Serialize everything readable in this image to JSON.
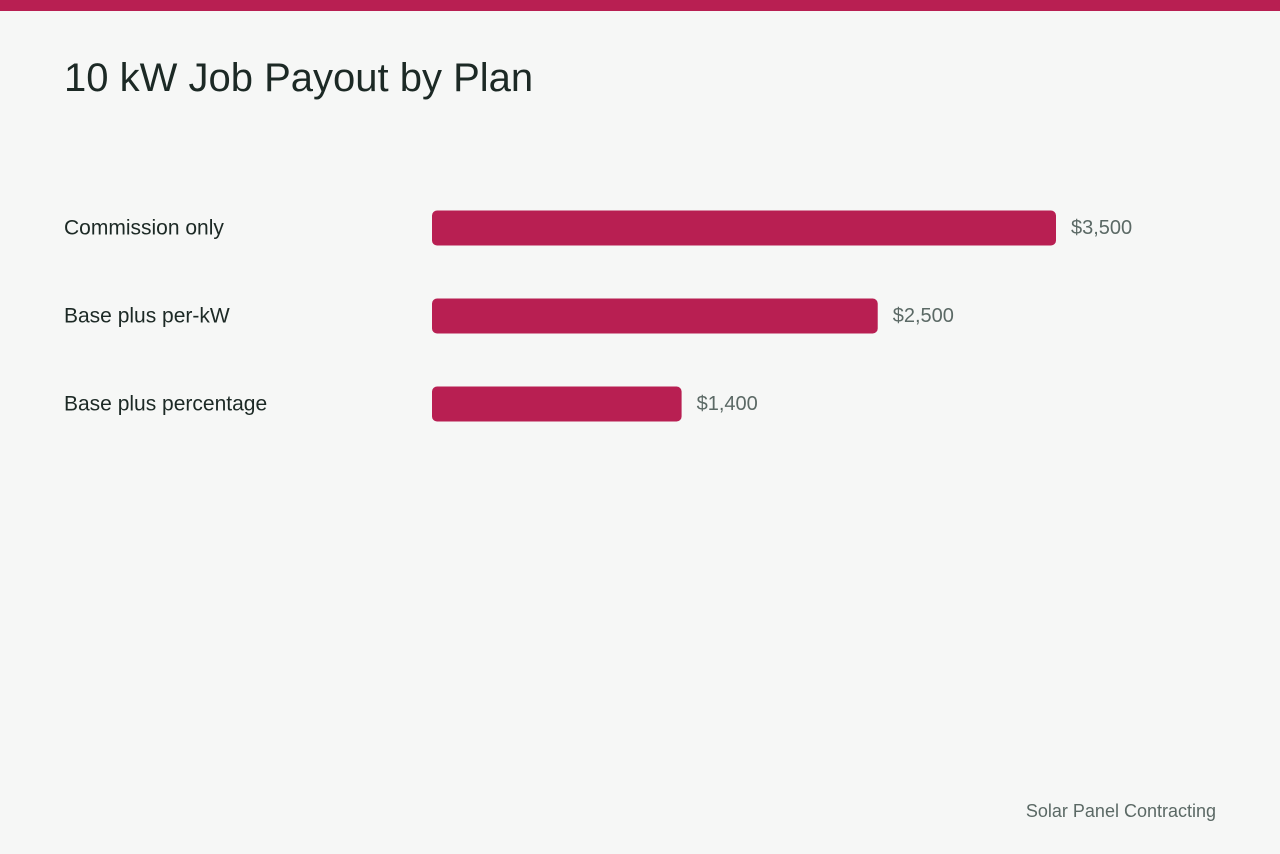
{
  "colors": {
    "accent": "#b81f52",
    "background": "#f6f7f6",
    "title_text": "#1c2925",
    "muted_text": "#5b6965"
  },
  "footer": {
    "text": "Solar Panel Contracting"
  },
  "chart_data": {
    "type": "bar",
    "orientation": "horizontal",
    "title": "10 kW Job Payout by Plan",
    "categories": [
      "Commission only",
      "Base plus per-kW",
      "Base plus percentage"
    ],
    "values": [
      3500,
      2500,
      1400
    ],
    "value_labels": [
      "$3,500",
      "$2,500",
      "$1,400"
    ],
    "xlim": [
      0,
      3500
    ],
    "grid": false,
    "legend": "none"
  }
}
